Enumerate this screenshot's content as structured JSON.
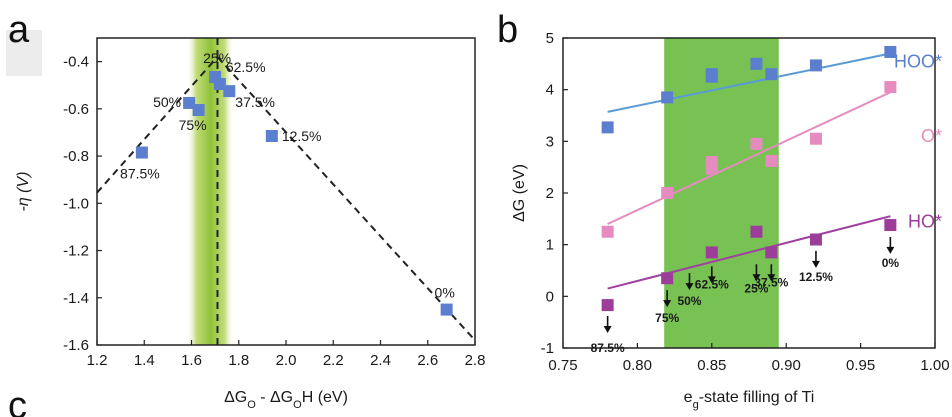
{
  "panels": {
    "a": "a",
    "b": "b",
    "c": "c"
  },
  "chart_data": [
    {
      "type": "scatter",
      "title": "",
      "xlabel": "ΔG_O - ΔG_OH (eV)",
      "ylabel": "-η (V)",
      "xlim": [
        1.2,
        2.8
      ],
      "ylim": [
        -1.6,
        -0.3
      ],
      "xticks": [
        "1.2",
        "1.4",
        "1.6",
        "1.8",
        "2.0",
        "2.2",
        "2.4",
        "2.6",
        "2.8"
      ],
      "yticks": [
        "-0.4",
        "-0.6",
        "-0.8",
        "-1.0",
        "-1.2",
        "-1.4",
        "-1.6"
      ],
      "highlight_band_x": [
        1.58,
        1.78
      ],
      "highlight_color": "#9bc83c",
      "marker_color": "#5b7fce",
      "points": [
        {
          "x": 1.39,
          "y": -0.785,
          "label": "87.5%"
        },
        {
          "x": 1.59,
          "y": -0.575,
          "label": "50%"
        },
        {
          "x": 1.63,
          "y": -0.605,
          "label": "75%"
        },
        {
          "x": 1.7,
          "y": -0.465,
          "label": "25%"
        },
        {
          "x": 1.72,
          "y": -0.495,
          "label": "62.5%"
        },
        {
          "x": 1.76,
          "y": -0.525,
          "label": "37.5%"
        },
        {
          "x": 1.94,
          "y": -0.715,
          "label": "12.5%"
        },
        {
          "x": 2.68,
          "y": -1.45,
          "label": "0%"
        }
      ],
      "volcano_lines": [
        {
          "x": [
            1.2,
            1.71
          ],
          "y": [
            -0.955,
            -0.38
          ]
        },
        {
          "x": [
            1.71,
            2.8
          ],
          "y": [
            -0.38,
            -1.58
          ]
        },
        {
          "x": [
            1.71,
            1.71
          ],
          "y": [
            -0.3,
            -1.6
          ]
        }
      ]
    },
    {
      "type": "scatter",
      "title": "",
      "xlabel": "e_g-state filling of Ti",
      "ylabel": "ΔG (eV)",
      "xlim": [
        0.75,
        1.0
      ],
      "ylim": [
        -1,
        5
      ],
      "xticks": [
        "0.75",
        "0.80",
        "0.85",
        "0.90",
        "0.95",
        "1.00"
      ],
      "yticks": [
        "-1",
        "0",
        "1",
        "2",
        "3",
        "4",
        "5"
      ],
      "highlight_band_x": [
        0.818,
        0.895
      ],
      "highlight_color": "#6cbd45",
      "series": [
        {
          "name": "HOO*",
          "color": "#5b7fce",
          "line_color": "#5b9bd5",
          "x": [
            0.78,
            0.82,
            0.85,
            0.85,
            0.88,
            0.89,
            0.92,
            0.97
          ],
          "y": [
            3.27,
            3.85,
            4.25,
            4.3,
            4.5,
            4.3,
            4.47,
            4.73
          ],
          "fit": [
            [
              0.78,
              3.57
            ],
            [
              0.97,
              4.7
            ]
          ]
        },
        {
          "name": "O*",
          "color": "#e58bbf",
          "line_color": "#e58bbf",
          "x": [
            0.78,
            0.82,
            0.85,
            0.85,
            0.88,
            0.89,
            0.92,
            0.97
          ],
          "y": [
            1.25,
            2.0,
            2.6,
            2.47,
            2.95,
            2.62,
            3.05,
            4.05
          ],
          "fit": [
            [
              0.78,
              1.4
            ],
            [
              0.97,
              3.95
            ]
          ]
        },
        {
          "name": "HO*",
          "color": "#9b3d99",
          "line_color": "#a040a0",
          "x": [
            0.78,
            0.82,
            0.85,
            0.88,
            0.89,
            0.92,
            0.97
          ],
          "y": [
            -0.17,
            0.35,
            0.85,
            1.25,
            0.85,
            1.1,
            1.38
          ],
          "fit": [
            [
              0.78,
              0.15
            ],
            [
              0.97,
              1.55
            ]
          ]
        }
      ],
      "annotations": [
        {
          "x": 0.78,
          "text": "87.5%"
        },
        {
          "x": 0.82,
          "text": "75%"
        },
        {
          "x": 0.835,
          "text": "50%"
        },
        {
          "x": 0.85,
          "text": "62.5%"
        },
        {
          "x": 0.88,
          "text": "25%"
        },
        {
          "x": 0.89,
          "text": "37.5%"
        },
        {
          "x": 0.92,
          "text": "12.5%"
        },
        {
          "x": 0.97,
          "text": "0%"
        }
      ]
    }
  ]
}
